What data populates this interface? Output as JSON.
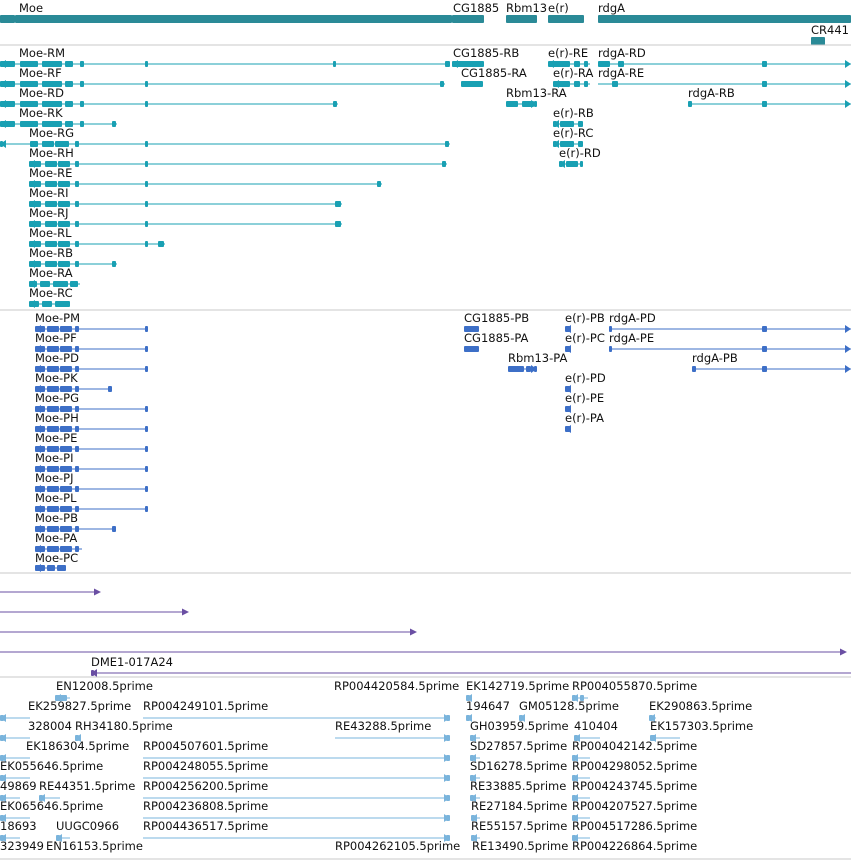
{
  "colors": {
    "gene": "#2a8a97",
    "rna": "#19a0b3",
    "protein": "#3d6fc7",
    "clone": "#6a4fa3",
    "est": "#7ab4dc",
    "divider": "#c8c8c8",
    "label": "#111111"
  },
  "tracks": [
    {
      "id": "genes",
      "color_key": "gene",
      "items": [
        {
          "label": "Moe"
        },
        {
          "label": "CG1885"
        },
        {
          "label": "Rbm13"
        },
        {
          "label": "e(r)"
        },
        {
          "label": "rdgA"
        },
        {
          "label": "CR441"
        }
      ]
    },
    {
      "id": "transcripts",
      "color_key": "rna",
      "items": [
        {
          "label": "Moe-RM"
        },
        {
          "label": "Moe-RF"
        },
        {
          "label": "Moe-RD"
        },
        {
          "label": "Moe-RK"
        },
        {
          "label": "Moe-RG"
        },
        {
          "label": "Moe-RH"
        },
        {
          "label": "Moe-RE"
        },
        {
          "label": "Moe-RI"
        },
        {
          "label": "Moe-RJ"
        },
        {
          "label": "Moe-RL"
        },
        {
          "label": "Moe-RB"
        },
        {
          "label": "Moe-RA"
        },
        {
          "label": "Moe-RC"
        },
        {
          "label": "CG1885-RB"
        },
        {
          "label": "CG1885-RA"
        },
        {
          "label": "Rbm13-RA"
        },
        {
          "label": "e(r)-RB"
        },
        {
          "label": "e(r)-RC"
        },
        {
          "label": "e(r)-RD"
        },
        {
          "label": "e(r)-RE"
        },
        {
          "label": "e(r)-RA"
        },
        {
          "label": "rdgA-RD"
        },
        {
          "label": "rdgA-RE"
        },
        {
          "label": "rdgA-RB"
        }
      ]
    },
    {
      "id": "proteins",
      "color_key": "protein",
      "items": [
        {
          "label": "Moe-PM"
        },
        {
          "label": "Moe-PF"
        },
        {
          "label": "Moe-PD"
        },
        {
          "label": "Moe-PK"
        },
        {
          "label": "Moe-PG"
        },
        {
          "label": "Moe-PH"
        },
        {
          "label": "Moe-PE"
        },
        {
          "label": "Moe-PI"
        },
        {
          "label": "Moe-PJ"
        },
        {
          "label": "Moe-PL"
        },
        {
          "label": "Moe-PB"
        },
        {
          "label": "Moe-PA"
        },
        {
          "label": "Moe-PC"
        },
        {
          "label": "CG1885-PB"
        },
        {
          "label": "CG1885-PA"
        },
        {
          "label": "Rbm13-PA"
        },
        {
          "label": "e(r)-PB"
        },
        {
          "label": "e(r)-PC"
        },
        {
          "label": "e(r)-PD"
        },
        {
          "label": "e(r)-PE"
        },
        {
          "label": "e(r)-PA"
        },
        {
          "label": "rdgA-PD"
        },
        {
          "label": "rdgA-PE"
        },
        {
          "label": "rdgA-PB"
        }
      ]
    },
    {
      "id": "clones",
      "color_key": "clone",
      "items": [
        {
          "label": "DME1-017A24"
        }
      ]
    },
    {
      "id": "ests",
      "color_key": "est",
      "items": [
        {
          "label": "EN12008.5prime"
        },
        {
          "label": "RP004420584.5prime"
        },
        {
          "label": "EK142719.5prime"
        },
        {
          "label": "RP004055870.5prime"
        },
        {
          "label": "EK259827.5prime"
        },
        {
          "label": "RP004249101.5prime"
        },
        {
          "label": "194647"
        },
        {
          "label": "GM05128.5prime"
        },
        {
          "label": "EK290863.5prime"
        },
        {
          "label": "328004"
        },
        {
          "label": "RH34180.5prime"
        },
        {
          "label": "RE43288.5prime"
        },
        {
          "label": "GH03959.5prime"
        },
        {
          "label": "410404"
        },
        {
          "label": "EK157303.5prime"
        },
        {
          "label": "EK186304.5prime"
        },
        {
          "label": "RP004507601.5prime"
        },
        {
          "label": "SD27857.5prime"
        },
        {
          "label": "RP004042142.5prime"
        },
        {
          "label": "EK055646.5prime"
        },
        {
          "label": "RP004248055.5prime"
        },
        {
          "label": "SD16278.5prime"
        },
        {
          "label": "RP004298052.5prime"
        },
        {
          "label": "49869"
        },
        {
          "label": "RE44351.5prime"
        },
        {
          "label": "RP004256200.5prime"
        },
        {
          "label": "RE33885.5prime"
        },
        {
          "label": "RP004243745.5prime"
        },
        {
          "label": "EK065646.5prime"
        },
        {
          "label": "RP004236808.5prime"
        },
        {
          "label": "RE27184.5prime"
        },
        {
          "label": "RP004207527.5prime"
        },
        {
          "label": "18693"
        },
        {
          "label": "UUGC0966"
        },
        {
          "label": "RP004436517.5prime"
        },
        {
          "label": "RE55157.5prime"
        },
        {
          "label": "RP004517286.5prime"
        },
        {
          "label": "323949"
        },
        {
          "label": "EN16153.5prime"
        },
        {
          "label": "RP004262105.5prime"
        },
        {
          "label": "RE13490.5prime"
        },
        {
          "label": "RP004226864.5prime"
        }
      ]
    }
  ]
}
